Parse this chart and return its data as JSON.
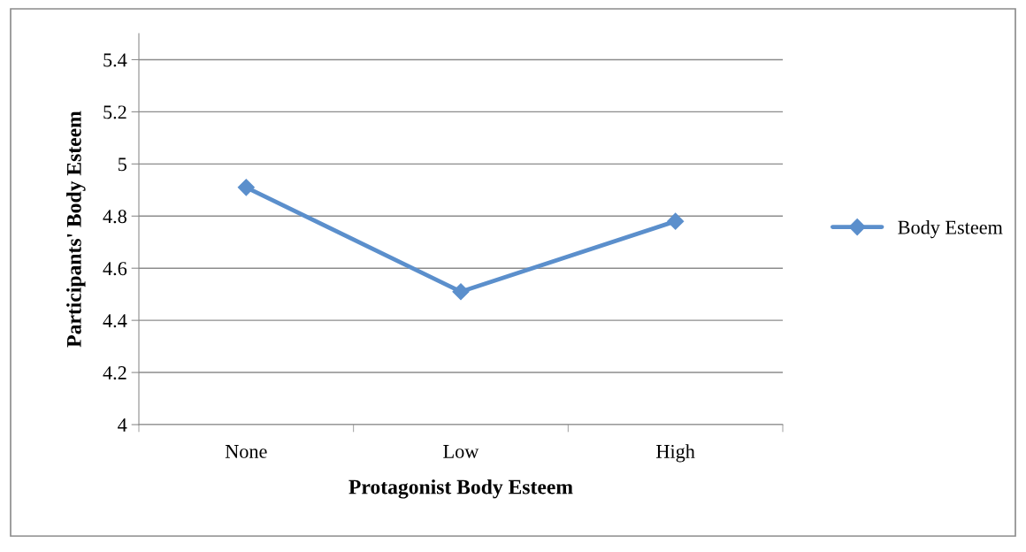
{
  "chart_data": {
    "type": "line",
    "xlabel": "Protagonist Body Esteem",
    "ylabel": "Participants' Body Esteem",
    "categories": [
      "None",
      "Low",
      "High"
    ],
    "series": [
      {
        "name": "Body Esteem",
        "color": "#5b8fcc",
        "values": [
          4.91,
          4.51,
          4.78
        ]
      }
    ],
    "ylim": [
      4,
      5.5
    ],
    "yticks": [
      4,
      4.2,
      4.4,
      4.6,
      4.8,
      5,
      5.2,
      5.4
    ],
    "grid": "y",
    "legend": "right",
    "marker": "diamond",
    "line_style": "solid"
  }
}
